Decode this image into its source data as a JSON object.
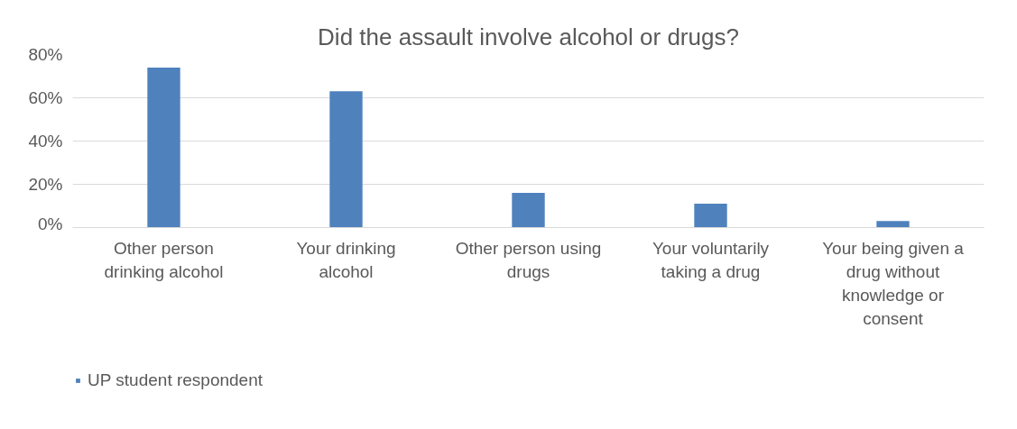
{
  "chart_data": {
    "type": "bar",
    "title": "Did the assault involve alcohol or drugs?",
    "categories": [
      "Other person drinking alcohol",
      "Your drinking alcohol",
      "Other person using drugs",
      "Your voluntarily taking a drug",
      "Your being given a drug without knowledge or consent"
    ],
    "series": [
      {
        "name": "UP student respondent",
        "color": "#4f81bd",
        "values": [
          74,
          63,
          16,
          11,
          3
        ]
      }
    ],
    "ylim": [
      0,
      80
    ],
    "yticks": [
      {
        "value": 0,
        "label": "0%"
      },
      {
        "value": 20,
        "label": "20%"
      },
      {
        "value": 40,
        "label": "40%"
      },
      {
        "value": 60,
        "label": "60%"
      },
      {
        "value": 80,
        "label": "80%"
      }
    ],
    "grid": "y",
    "legend": "bottom left"
  }
}
